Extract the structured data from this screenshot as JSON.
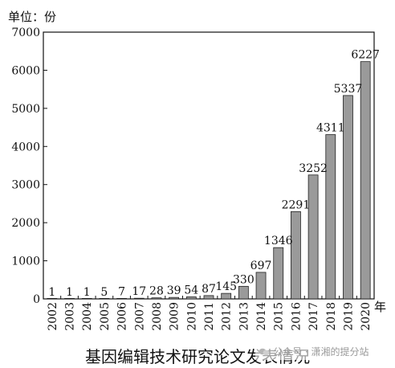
{
  "chart_data": {
    "type": "bar",
    "title": "基因编辑技术研究论文发表情况",
    "ylabel": "单位：份",
    "xlabel": "年",
    "ylim": [
      0,
      7000
    ],
    "yticks": [
      0,
      1000,
      2000,
      3000,
      4000,
      5000,
      6000,
      7000
    ],
    "categories": [
      "2002",
      "2003",
      "2004",
      "2005",
      "2006",
      "2007",
      "2008",
      "2009",
      "2010",
      "2011",
      "2012",
      "2013",
      "2014",
      "2015",
      "2016",
      "2017",
      "2018",
      "2019",
      "2020"
    ],
    "values": [
      1,
      1,
      1,
      5,
      7,
      17,
      28,
      39,
      54,
      87,
      145,
      330,
      697,
      1346,
      2291,
      3252,
      4311,
      5337,
      6227
    ],
    "data_labels": [
      "1",
      "1",
      "1",
      "5",
      "7",
      "17",
      "28",
      "39",
      "54",
      "87",
      "145",
      "330",
      "697",
      "1346",
      "2291",
      "3252",
      "4311",
      "5337",
      "6227"
    ],
    "bar_color": "#9a9a9a",
    "grid": false
  },
  "watermark": {
    "text": "公众号 · 潇湘的提分站",
    "icon": "wechat-icon"
  }
}
